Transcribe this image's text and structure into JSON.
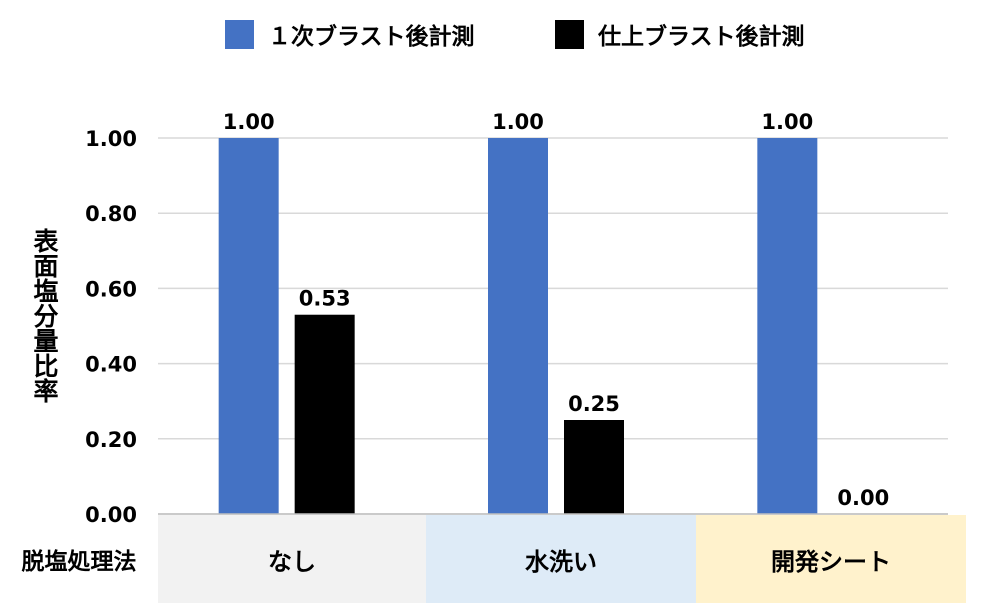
{
  "chart_data": {
    "type": "bar",
    "title": "",
    "xlabel": "",
    "ylabel": "表面塩分量比率",
    "categories": [
      "なし",
      "水洗い",
      "開発シート"
    ],
    "series": [
      {
        "name": "１次ブラスト後計測",
        "color": "#4472C4",
        "values": [
          1.0,
          1.0,
          1.0
        ]
      },
      {
        "name": "仕上ブラスト後計測",
        "color": "#000000",
        "values": [
          0.53,
          0.25,
          0.0
        ]
      }
    ],
    "ylim": [
      0,
      1.0
    ],
    "yticks": [
      "0.00",
      "0.20",
      "0.40",
      "0.60",
      "0.80",
      "1.00"
    ],
    "data_labels": [
      [
        "1.00",
        "1.00",
        "1.00"
      ],
      [
        "0.53",
        "0.25",
        "0.00"
      ]
    ],
    "grid": true,
    "legend_position": "top"
  },
  "table": {
    "row_header": "脱塩処理法",
    "cell_colors": [
      "#F2F2F2",
      "#DEEBF7",
      "#FFF2CC"
    ]
  }
}
